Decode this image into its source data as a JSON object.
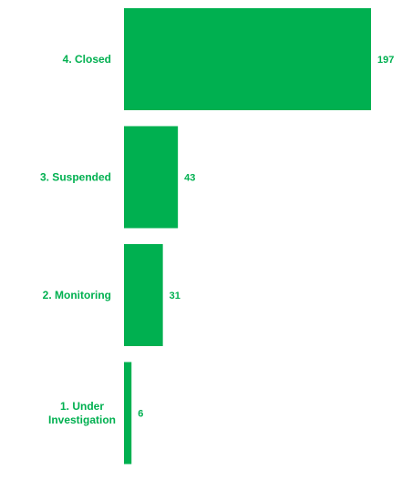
{
  "chart_data": {
    "type": "bar",
    "orientation": "horizontal",
    "categories": [
      "4. Closed",
      "3. Suspended",
      "2. Monitoring",
      "1. Under Investigation"
    ],
    "category_lines": [
      [
        "4. Closed"
      ],
      [
        "3. Suspended"
      ],
      [
        "2. Monitoring"
      ],
      [
        "1. Under",
        "Investigation"
      ]
    ],
    "values": [
      197,
      43,
      31,
      6
    ],
    "value_labels": [
      "197",
      "43",
      "31",
      "6"
    ],
    "title": "",
    "xlabel": "",
    "ylabel": "",
    "xlim": [
      0,
      197
    ],
    "grid": false,
    "legend": "none",
    "colors": {
      "bar": "#00b050",
      "label": "#00b050",
      "background": "#ffffff"
    }
  }
}
